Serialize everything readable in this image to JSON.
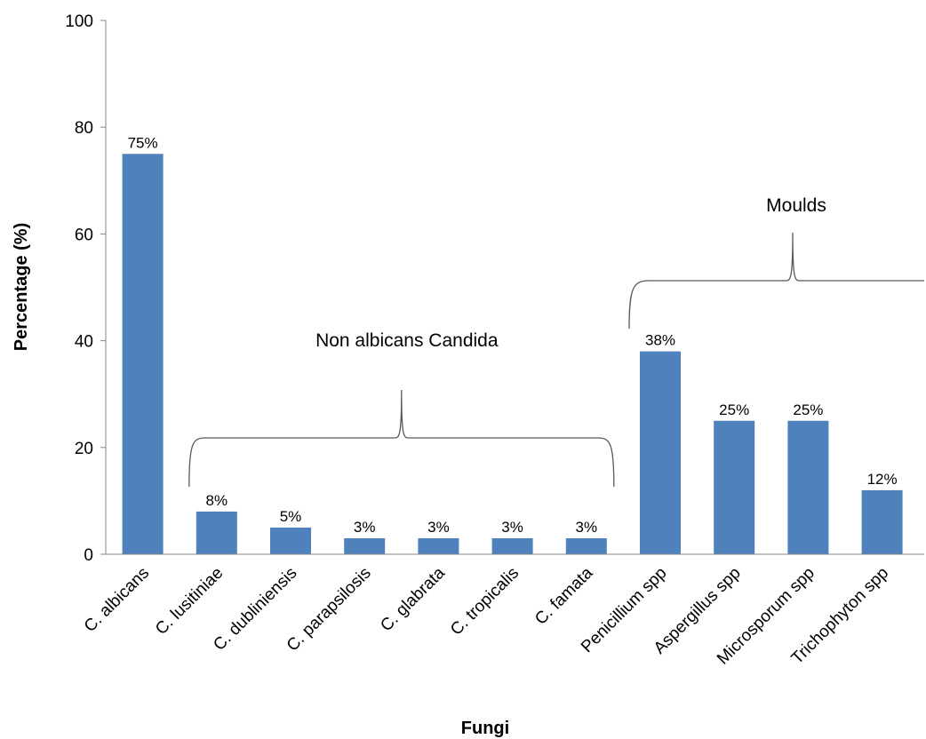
{
  "chart_data": {
    "type": "bar",
    "title": "",
    "xlabel": "Fungi",
    "ylabel": "Percentage (%)",
    "ylim": [
      0,
      100
    ],
    "yticks": [
      0,
      20,
      40,
      60,
      80,
      100
    ],
    "grid": false,
    "legend": "none",
    "bar_color": "#4f81bd",
    "categories": [
      "C. albicans",
      "C. lusitiniae",
      "C. dubliniensis",
      "C. parapsilosis",
      "C. glabrata",
      "C. tropicalis",
      "C. famata",
      "Penicillium spp",
      "Aspergillus spp",
      "Microsporum spp",
      "Trichophyton spp"
    ],
    "values": [
      75,
      8,
      5,
      3,
      3,
      3,
      3,
      38,
      25,
      25,
      12
    ],
    "data_labels": [
      "75%",
      "8%",
      "5%",
      "3%",
      "3%",
      "3%",
      "3%",
      "38%",
      "25%",
      "25%",
      "12%"
    ],
    "annotations": [
      {
        "text": "Non albicans Candida",
        "from_category": 1,
        "to_category": 6
      },
      {
        "text": "Moulds",
        "from_category": 7,
        "to_category": 10
      }
    ]
  }
}
